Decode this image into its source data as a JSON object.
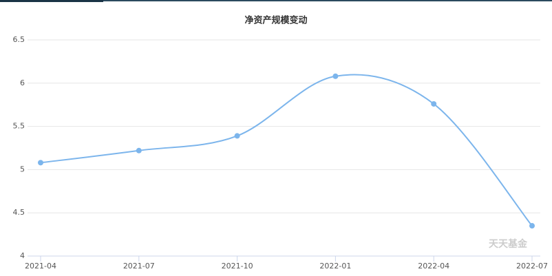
{
  "chart_data": {
    "type": "line",
    "title": "净资产规模变动",
    "categories": [
      "2021-04",
      "2021-07",
      "2021-10",
      "2022-01",
      "2022-04",
      "2022-07"
    ],
    "series": [
      {
        "color": "#7cb5ec",
        "values": [
          5.08,
          5.22,
          5.39,
          6.08,
          5.76,
          4.35
        ]
      }
    ],
    "ylim": [
      4,
      6.5
    ],
    "yticks": [
      4,
      4.5,
      5,
      5.5,
      6,
      6.5
    ],
    "grid": true,
    "watermark": "天天基金"
  }
}
